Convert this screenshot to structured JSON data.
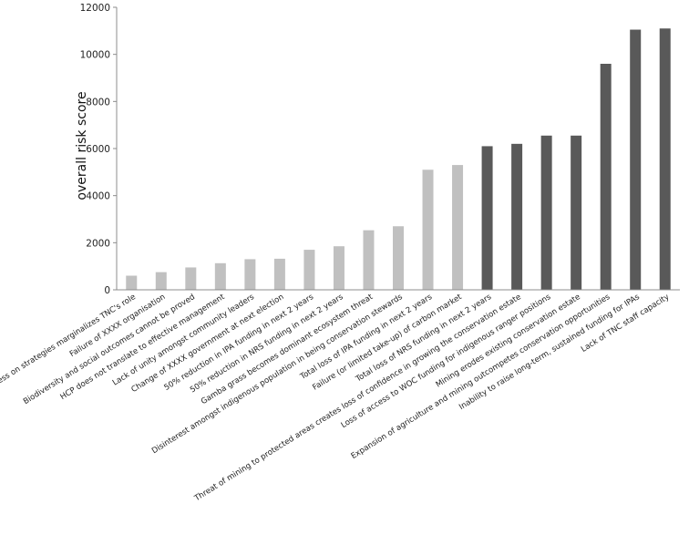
{
  "chart_data": {
    "type": "bar",
    "title": "",
    "xlabel": "",
    "ylabel": "overall risk score",
    "ylim": [
      0,
      12000
    ],
    "yticks": [
      0,
      2000,
      4000,
      6000,
      8000,
      10000,
      12000
    ],
    "grid": false,
    "legend": "none",
    "colors": {
      "low": "#c0c0c0",
      "high": "#595959",
      "axis": "#8c8c8c"
    },
    "categories": [
      "Slow progress on strategies marginalizes TNC's role",
      "Failure of XXXX organisation",
      "Biodiversity and social outcomes cannot be proved",
      "HCP does not translate to effective management",
      "Lack of unity amongst community leaders",
      "Change of XXXX government at next election",
      "50% reduction in IPA funding in next 2 years",
      "50% reduction in NRS funding in next 2 years",
      "Gamba grass becomes dominant ecosystem threat",
      "Disinterest amongst indigenous population in being conservation stewards",
      "Total loss of IPA funding in next 2 years",
      "Failure (or limited take-up) of carbon market",
      "Total loss of NRS funding in next 2 years",
      "Threat of mining to protected areas creates loss of confidence in growing the conservation estate",
      "Loss of access to WOC funding for indigenous ranger positions",
      "Mining erodes existing conservation estate",
      "Expansion of agriculture and mining outcompetes conservation opportunities",
      "Inability to raise long-term, sustained funding for IPAs",
      "Lack of TNC staff capacity"
    ],
    "values": [
      600,
      750,
      950,
      1130,
      1300,
      1320,
      1700,
      1850,
      2530,
      2700,
      5100,
      5300,
      6100,
      6200,
      6550,
      6550,
      9600,
      11050,
      11100
    ],
    "bar_color_group": [
      "low",
      "low",
      "low",
      "low",
      "low",
      "low",
      "low",
      "low",
      "low",
      "low",
      "low",
      "low",
      "high",
      "high",
      "high",
      "high",
      "high",
      "high",
      "high"
    ]
  }
}
